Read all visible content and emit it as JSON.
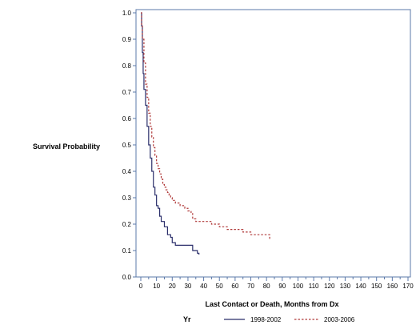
{
  "chart_data": {
    "type": "line",
    "subtype": "step (Kaplan-Meier survival)",
    "xlabel": "Last Contact or Death, Months from Dx",
    "ylabel": "Survival Probability",
    "xlim": [
      0,
      170
    ],
    "ylim": [
      0,
      1.0
    ],
    "x_ticks": [
      0,
      5,
      10,
      15,
      20,
      25,
      30,
      35,
      40,
      45,
      50,
      55,
      60,
      65,
      70,
      75,
      80,
      85,
      90,
      95,
      100,
      105,
      110,
      115,
      120,
      125,
      130,
      135,
      140,
      145,
      150,
      155,
      160,
      165,
      170
    ],
    "y_ticks": [
      0.0,
      0.1,
      0.2,
      0.3,
      0.4,
      0.5,
      0.6,
      0.7,
      0.8,
      0.9,
      1.0
    ],
    "y_tick_format": "0.0",
    "grid": false,
    "legend": {
      "title": "Yr",
      "placement": "bottom"
    },
    "series": [
      {
        "name": "1998-2002",
        "color": "#2b2f6b",
        "dash": "solid",
        "points": [
          [
            0,
            1.0
          ],
          [
            0.5,
            0.95
          ],
          [
            1,
            0.85
          ],
          [
            1.5,
            0.77
          ],
          [
            2,
            0.71
          ],
          [
            3,
            0.65
          ],
          [
            4,
            0.57
          ],
          [
            5,
            0.5
          ],
          [
            6,
            0.45
          ],
          [
            7,
            0.4
          ],
          [
            8,
            0.34
          ],
          [
            9,
            0.31
          ],
          [
            10,
            0.27
          ],
          [
            11,
            0.26
          ],
          [
            12,
            0.23
          ],
          [
            13,
            0.21
          ],
          [
            15,
            0.19
          ],
          [
            17,
            0.16
          ],
          [
            19,
            0.15
          ],
          [
            20,
            0.13
          ],
          [
            22,
            0.12
          ],
          [
            25,
            0.12
          ],
          [
            30,
            0.12
          ],
          [
            32,
            0.12
          ],
          [
            33,
            0.1
          ],
          [
            35,
            0.1
          ],
          [
            36,
            0.09
          ],
          [
            37,
            0.085
          ]
        ]
      },
      {
        "name": "2003-2006",
        "color": "#b03a3a",
        "dash": "dashed",
        "points": [
          [
            0,
            1.0
          ],
          [
            0.5,
            0.95
          ],
          [
            1,
            0.9
          ],
          [
            2,
            0.81
          ],
          [
            3,
            0.73
          ],
          [
            4,
            0.68
          ],
          [
            5,
            0.62
          ],
          [
            6,
            0.57
          ],
          [
            7,
            0.53
          ],
          [
            8,
            0.49
          ],
          [
            9,
            0.46
          ],
          [
            10,
            0.43
          ],
          [
            11,
            0.41
          ],
          [
            12,
            0.39
          ],
          [
            13,
            0.37
          ],
          [
            14,
            0.35
          ],
          [
            15,
            0.34
          ],
          [
            16,
            0.33
          ],
          [
            17,
            0.32
          ],
          [
            18,
            0.31
          ],
          [
            19,
            0.3
          ],
          [
            20,
            0.29
          ],
          [
            22,
            0.28
          ],
          [
            25,
            0.27
          ],
          [
            28,
            0.26
          ],
          [
            30,
            0.25
          ],
          [
            32,
            0.24
          ],
          [
            33,
            0.22
          ],
          [
            35,
            0.21
          ],
          [
            40,
            0.21
          ],
          [
            45,
            0.2
          ],
          [
            50,
            0.19
          ],
          [
            55,
            0.18
          ],
          [
            60,
            0.18
          ],
          [
            65,
            0.17
          ],
          [
            70,
            0.16
          ],
          [
            75,
            0.16
          ],
          [
            80,
            0.16
          ],
          [
            82,
            0.14
          ]
        ]
      }
    ]
  }
}
